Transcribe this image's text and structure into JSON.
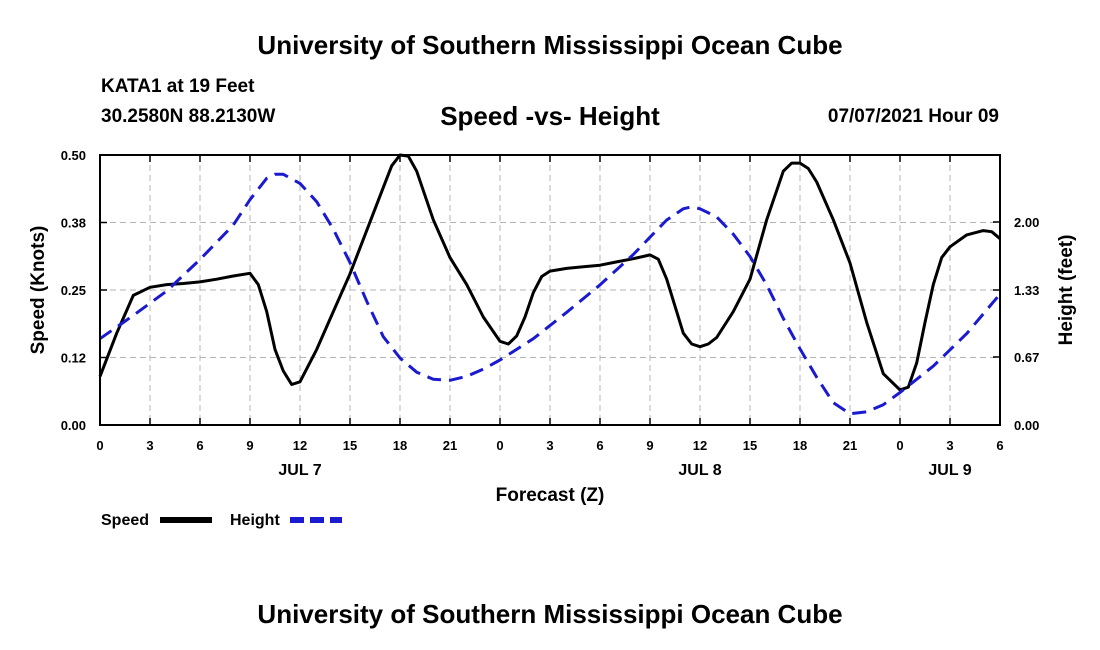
{
  "header": {
    "title": "University of Southern Mississippi Ocean Cube",
    "station": "KATA1 at 19 Feet",
    "coords": "30.2580N  88.2130W",
    "subtitle": "Speed -vs- Height",
    "datetime": "07/07/2021 Hour 09"
  },
  "footer": {
    "title": "University of Southern Mississippi Ocean Cube"
  },
  "colors": {
    "speed": "#000000",
    "height": "#1a1ad0",
    "grid": "#b4b4b4"
  },
  "chart_data": {
    "type": "line",
    "title": "Speed -vs- Height",
    "xlabel": "Forecast (Z)",
    "ylabel": "Speed (Knots)",
    "y2label": "Height (feet)",
    "xlim": [
      0,
      54
    ],
    "ylim": [
      0,
      0.5
    ],
    "y2lim": [
      0,
      2.66
    ],
    "grid": true,
    "x_ticks": [
      0,
      3,
      6,
      9,
      12,
      15,
      18,
      21,
      24,
      27,
      30,
      33,
      36,
      39,
      42,
      45,
      48,
      51,
      54
    ],
    "x_tick_labels": [
      "0",
      "3",
      "6",
      "9",
      "12",
      "15",
      "18",
      "21",
      "0",
      "3",
      "6",
      "9",
      "12",
      "15",
      "18",
      "21",
      "0",
      "3",
      "6"
    ],
    "y_ticks": [
      0,
      0.125,
      0.25,
      0.375,
      0.5
    ],
    "y_tick_labels": [
      "0.00",
      "0.12",
      "0.25",
      "0.38",
      "0.50"
    ],
    "y2_ticks": [
      0,
      0.67,
      1.33,
      2.0
    ],
    "y2_tick_labels": [
      "0.00",
      "0.67",
      "1.33",
      "2.00"
    ],
    "date_labels": [
      {
        "x": 12,
        "label": "JUL 7"
      },
      {
        "x": 36,
        "label": "JUL 8"
      },
      {
        "x": 51,
        "label": "JUL 9"
      }
    ],
    "legend_position": "bottom-left",
    "series": [
      {
        "name": "Speed",
        "axis": "left",
        "style": "solid",
        "x": [
          0,
          1,
          2,
          3,
          4,
          5,
          6,
          7,
          8,
          9,
          9.5,
          10,
          10.5,
          11,
          11.5,
          12,
          13,
          14,
          15,
          16,
          17,
          17.5,
          18,
          18.5,
          19,
          20,
          21,
          22,
          23,
          24,
          24.5,
          25,
          25.5,
          26,
          26.5,
          27,
          28,
          29,
          30,
          31,
          32,
          33,
          33.5,
          34,
          34.5,
          35,
          35.5,
          36,
          36.5,
          37,
          38,
          39,
          40,
          41,
          41.5,
          42,
          42.5,
          43,
          44,
          45,
          46,
          47,
          48,
          48.5,
          49,
          49.5,
          50,
          50.5,
          51,
          52,
          53,
          53.5,
          54
        ],
        "values": [
          0.09,
          0.17,
          0.24,
          0.255,
          0.26,
          0.262,
          0.265,
          0.27,
          0.276,
          0.281,
          0.26,
          0.21,
          0.14,
          0.1,
          0.075,
          0.08,
          0.14,
          0.21,
          0.28,
          0.36,
          0.44,
          0.48,
          0.5,
          0.498,
          0.47,
          0.38,
          0.31,
          0.26,
          0.2,
          0.155,
          0.15,
          0.165,
          0.2,
          0.245,
          0.275,
          0.285,
          0.29,
          0.293,
          0.296,
          0.302,
          0.308,
          0.315,
          0.307,
          0.27,
          0.22,
          0.17,
          0.15,
          0.145,
          0.15,
          0.162,
          0.21,
          0.27,
          0.38,
          0.47,
          0.485,
          0.485,
          0.475,
          0.45,
          0.38,
          0.3,
          0.19,
          0.095,
          0.065,
          0.07,
          0.115,
          0.19,
          0.26,
          0.31,
          0.33,
          0.352,
          0.36,
          0.358,
          0.345
        ]
      },
      {
        "name": "Height",
        "axis": "right",
        "style": "dashed",
        "x": [
          0,
          2,
          4,
          6,
          8,
          9,
          10,
          10.5,
          11,
          12,
          13,
          14,
          15,
          16,
          17,
          18,
          19,
          20,
          21,
          22,
          23,
          24,
          26,
          28,
          30,
          32,
          33,
          34,
          35,
          35.5,
          36,
          37,
          38,
          39,
          40,
          41,
          42,
          43,
          44,
          45,
          46,
          47,
          48,
          50,
          52,
          54
        ],
        "values": [
          0.85,
          1.08,
          1.32,
          1.63,
          1.97,
          2.22,
          2.43,
          2.47,
          2.47,
          2.38,
          2.2,
          1.93,
          1.6,
          1.22,
          0.87,
          0.66,
          0.52,
          0.45,
          0.44,
          0.48,
          0.55,
          0.64,
          0.85,
          1.11,
          1.38,
          1.68,
          1.85,
          2.02,
          2.13,
          2.15,
          2.13,
          2.05,
          1.88,
          1.66,
          1.38,
          1.05,
          0.75,
          0.47,
          0.22,
          0.11,
          0.13,
          0.2,
          0.32,
          0.58,
          0.9,
          1.29
        ]
      }
    ]
  },
  "legend": {
    "speed_label": "Speed",
    "height_label": "Height"
  }
}
